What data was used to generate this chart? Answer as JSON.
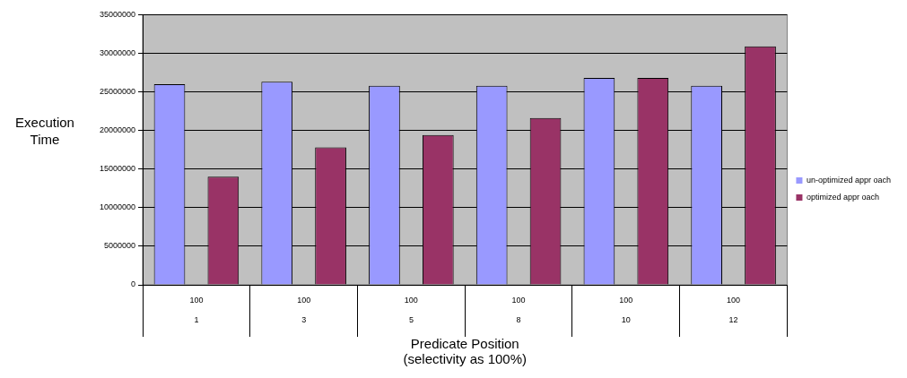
{
  "chart_data": {
    "type": "bar",
    "xlabel": "Predicate Position\n(selectivity as 100%)",
    "ylabel": "Execution Time",
    "categories": [
      "100\n1",
      "100\n3",
      "100\n5",
      "100\n8",
      "100\n10",
      "100\n12"
    ],
    "series": [
      {
        "name": "un-optimized appr oach",
        "color": "#9999ff",
        "values": [
          26000000,
          26300000,
          25800000,
          25800000,
          26800000,
          25800000
        ]
      },
      {
        "name": "optimized appr oach",
        "color": "#993366",
        "values": [
          14000000,
          17800000,
          19400000,
          21600000,
          26800000,
          30900000
        ]
      }
    ],
    "ylim": [
      0,
      35000000
    ],
    "yticks": [
      0,
      5000000,
      10000000,
      15000000,
      20000000,
      25000000,
      30000000,
      35000000
    ],
    "grid": "y",
    "legend": "right"
  }
}
